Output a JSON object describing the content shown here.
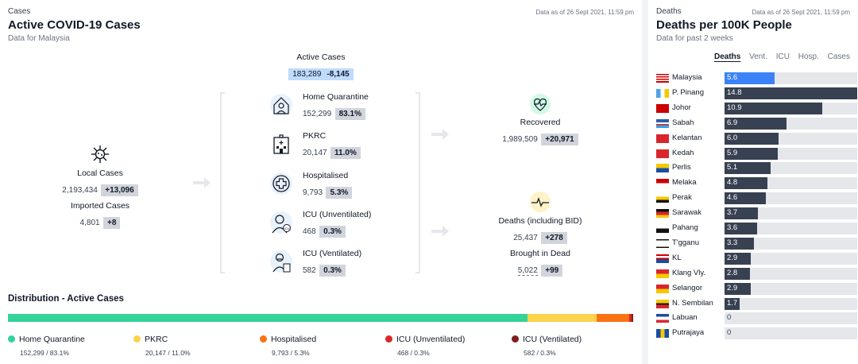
{
  "active": {
    "eyebrow": "Cases",
    "title": "Active COVID-19 Cases",
    "subtitle": "Data for Malaysia",
    "as_of": "Data as of 26 Sept 2021, 11:59 pm",
    "active_cases": {
      "label": "Active Cases",
      "value": "183,289",
      "change": "-8,145"
    },
    "local": {
      "label": "Local Cases",
      "value": "2,193,434",
      "change": "+13,096"
    },
    "imported": {
      "label": "Imported Cases",
      "value": "4,801",
      "change": "+8"
    },
    "categories": [
      {
        "label": "Home Quarantine",
        "value": "152,299",
        "pct": "83.1%",
        "icon": "house-person-icon"
      },
      {
        "label": "PKRC",
        "value": "20,147",
        "pct": "11.0%",
        "icon": "building-icon"
      },
      {
        "label": "Hospitalised",
        "value": "9,793",
        "pct": "5.3%",
        "icon": "medical-cross-icon"
      },
      {
        "label": "ICU (Unventilated)",
        "value": "468",
        "pct": "0.3%",
        "icon": "icu-patient-icon"
      },
      {
        "label": "ICU (Ventilated)",
        "value": "582",
        "pct": "0.3%",
        "icon": "ventilated-patient-icon"
      }
    ],
    "recovered": {
      "label": "Recovered",
      "value": "1,989,509",
      "change": "+20,971"
    },
    "deaths": {
      "label": "Deaths (including BID)",
      "value": "25,437",
      "change": "+278"
    },
    "bid": {
      "label": "Brought in Dead",
      "value": "5,022",
      "change": "+99"
    }
  },
  "distribution": {
    "title": "Distribution - Active Cases",
    "items": [
      {
        "label": "Home Quarantine",
        "detail": "152,299 / 83.1%",
        "color": "#34d399",
        "share": 0.831
      },
      {
        "label": "PKRC",
        "detail": "20,147 / 11.0%",
        "color": "#fcd34d",
        "share": 0.11
      },
      {
        "label": "Hospitalised",
        "detail": "9,793 / 5.3%",
        "color": "#f97316",
        "share": 0.053
      },
      {
        "label": "ICU (Unventilated)",
        "detail": "468 / 0.3%",
        "color": "#dc2626",
        "share": 0.003
      },
      {
        "label": "ICU (Ventilated)",
        "detail": "582 / 0.3%",
        "color": "#7f1d1d",
        "share": 0.003
      }
    ]
  },
  "deaths_panel": {
    "eyebrow": "Deaths",
    "title": "Deaths per 100K People",
    "subtitle": "Data for past 2 weeks",
    "as_of": "Data as of 26 Sept 2021, 11:59 pm",
    "tabs": [
      "Deaths",
      "Vent.",
      "ICU",
      "Hosp.",
      "Cases"
    ],
    "active_tab": "Deaths",
    "highlight_color": "#3b82f6",
    "bar_color": "#374151",
    "max_value": 14.8
  },
  "chart_data": {
    "type": "bar",
    "title": "Deaths per 100K People",
    "categories": [
      "Malaysia",
      "P. Pinang",
      "Johor",
      "Sabah",
      "Kelantan",
      "Kedah",
      "Perlis",
      "Melaka",
      "Perak",
      "Sarawak",
      "Pahang",
      "T'gganu",
      "KL",
      "Klang Vly.",
      "Selangor",
      "N. Sembilan",
      "Labuan",
      "Putrajaya"
    ],
    "values": [
      5.6,
      14.8,
      10.9,
      6.9,
      6.0,
      5.9,
      5.1,
      4.8,
      4.6,
      3.7,
      3.6,
      3.3,
      2.9,
      2.8,
      2.9,
      1.7,
      0,
      0
    ],
    "value_labels": [
      "5.6",
      "14.8",
      "10.9",
      "6.9",
      "6.0",
      "5.9",
      "5.1",
      "4.8",
      "4.6",
      "3.7",
      "3.6",
      "3.3",
      "2.9",
      "2.8",
      "2.9",
      "1.7",
      "0",
      "0"
    ],
    "xlim": [
      0,
      14.8
    ],
    "orientation": "horizontal",
    "grid": false
  }
}
